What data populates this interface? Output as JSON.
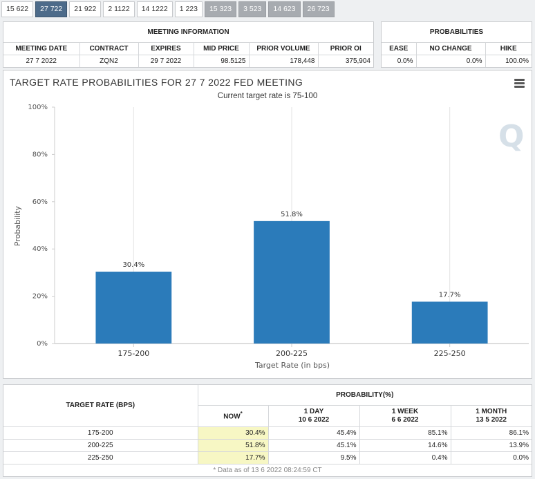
{
  "tabs": [
    {
      "label": "15 622",
      "state": "normal"
    },
    {
      "label": "27 722",
      "state": "active"
    },
    {
      "label": "21 922",
      "state": "normal"
    },
    {
      "label": "2 1122",
      "state": "normal"
    },
    {
      "label": "14 1222",
      "state": "normal"
    },
    {
      "label": "1 223",
      "state": "normal"
    },
    {
      "label": "15 323",
      "state": "grey"
    },
    {
      "label": "3 523",
      "state": "grey"
    },
    {
      "label": "14 623",
      "state": "grey"
    },
    {
      "label": "26 723",
      "state": "grey"
    }
  ],
  "meeting": {
    "title": "MEETING INFORMATION",
    "headers": [
      "MEETING DATE",
      "CONTRACT",
      "EXPIRES",
      "MID PRICE",
      "PRIOR VOLUME",
      "PRIOR OI"
    ],
    "row": [
      "27 7 2022",
      "ZQN2",
      "29 7 2022",
      "98.5125",
      "178,448",
      "375,904"
    ]
  },
  "probabilities": {
    "title": "PROBABILITIES",
    "headers": [
      "EASE",
      "NO CHANGE",
      "HIKE"
    ],
    "row": [
      "0.0%",
      "0.0%",
      "100.0%"
    ]
  },
  "chart": {
    "title": "TARGET RATE PROBABILITIES FOR 27 7 2022 FED MEETING",
    "subtitle": "Current target rate is 75-100",
    "watermark": "Q",
    "menu_icon": "hamburger-menu-icon",
    "bar_color": "#2b7bba"
  },
  "chart_data": {
    "type": "bar",
    "title": "TARGET RATE PROBABILITIES FOR 27 7 2022 FED MEETING",
    "subtitle": "Current target rate is 75-100",
    "categories": [
      "175-200",
      "200-225",
      "225-250"
    ],
    "values": [
      30.4,
      51.8,
      17.7
    ],
    "data_labels": [
      "30.4%",
      "51.8%",
      "17.7%"
    ],
    "xlabel": "Target Rate (in bps)",
    "ylabel": "Probability",
    "ylim": [
      0,
      100
    ],
    "yticks": [
      "0%",
      "20%",
      "40%",
      "60%",
      "80%",
      "100%"
    ],
    "grid": "vertical"
  },
  "bottom": {
    "target_header": "TARGET RATE (BPS)",
    "prob_header": "PROBABILITY(%)",
    "cols": [
      {
        "line1": "NOW",
        "line2": "",
        "star": "*"
      },
      {
        "line1": "1 DAY",
        "line2": "10 6 2022",
        "star": ""
      },
      {
        "line1": "1 WEEK",
        "line2": "6 6 2022",
        "star": ""
      },
      {
        "line1": "1 MONTH",
        "line2": "13 5 2022",
        "star": ""
      }
    ],
    "rows": [
      {
        "rate": "175-200",
        "vals": [
          "30.4%",
          "45.4%",
          "85.1%",
          "86.1%"
        ]
      },
      {
        "rate": "200-225",
        "vals": [
          "51.8%",
          "45.1%",
          "14.6%",
          "13.9%"
        ]
      },
      {
        "rate": "225-250",
        "vals": [
          "17.7%",
          "9.5%",
          "0.4%",
          "0.0%"
        ]
      }
    ],
    "footnote": "* Data as of 13 6 2022 08:24:59 CT"
  }
}
